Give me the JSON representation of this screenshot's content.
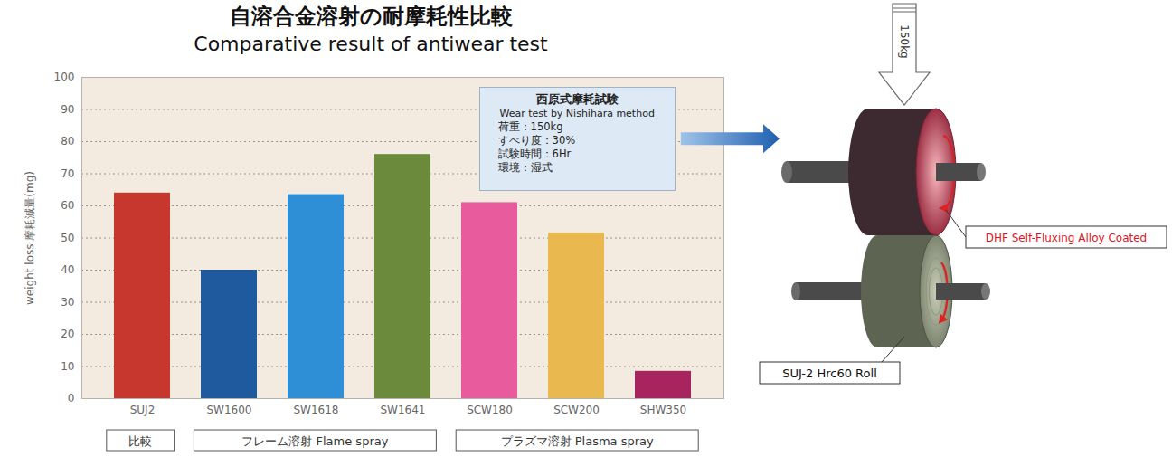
{
  "chart_data": {
    "type": "bar",
    "title": "自溶合金溶射の耐摩耗性比較",
    "subtitle": "Comparative result of antiwear test",
    "ylabel": "weight loss 摩耗減量(mg)",
    "categories": [
      "SUJ2",
      "SW1600",
      "SW1618",
      "SW1641",
      "SCW180",
      "SCW200",
      "SHW350"
    ],
    "values": [
      64,
      40,
      63.5,
      76,
      61,
      51.5,
      8.5
    ],
    "colors": [
      "#c8372d",
      "#1f5a9e",
      "#2e8fd6",
      "#6c8a3c",
      "#e85b9c",
      "#e9b94f",
      "#a8245f"
    ],
    "ylim": [
      0,
      100
    ],
    "yticks": [
      0,
      10,
      20,
      30,
      40,
      50,
      60,
      70,
      80,
      90,
      100
    ],
    "grid": true,
    "groups": [
      {
        "label": "比較",
        "categories": [
          "SUJ2"
        ]
      },
      {
        "label": "フレーム溶射 Flame spray",
        "categories": [
          "SW1600",
          "SW1618",
          "SW1641"
        ]
      },
      {
        "label": "プラズマ溶射 Plasma spray",
        "categories": [
          "SCW180",
          "SCW200",
          "SHW350"
        ]
      }
    ],
    "annotation": {
      "lines": [
        "西原式摩耗試験",
        "Wear test by Nishihara method",
        "荷重：150kg",
        "すべり度：30%",
        "試験時間：6Hr",
        "環境：湿式"
      ]
    }
  },
  "diagram": {
    "load": "150kg",
    "upper_roll": "DHF Self-Fluxing Alloy Coated",
    "lower_roll": "SUJ-2 Hrc60 Roll"
  }
}
